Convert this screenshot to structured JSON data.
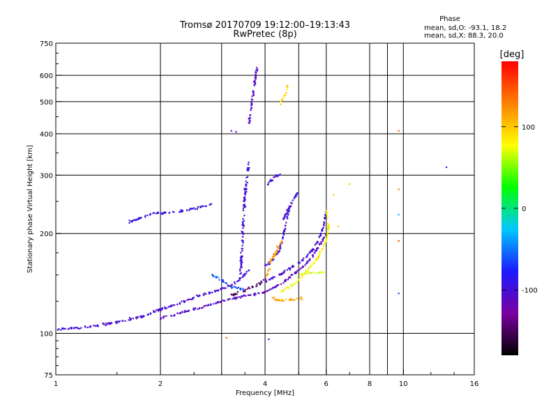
{
  "chart_data": {
    "type": "scatter",
    "title": "Tromsø 20170709 19:12:00–19:13:43",
    "subtitle": "RwPretec (8p)",
    "xlabel": "Frequency [MHz]",
    "ylabel": "Stationary phase Virtual Height [km]",
    "x_scale": "log",
    "y_scale": "log",
    "xlim": [
      1,
      16
    ],
    "ylim": [
      75,
      750
    ],
    "x_ticks": [
      1,
      2,
      4,
      6,
      8,
      10,
      16
    ],
    "x_tick_labels": [
      "1",
      "2",
      "4",
      "6",
      "8",
      "10",
      "16"
    ],
    "x_grid": [
      1,
      2,
      3,
      4,
      5,
      6,
      8,
      9,
      10,
      16
    ],
    "y_ticks": [
      75,
      100,
      200,
      300,
      400,
      500,
      600,
      750
    ],
    "y_tick_labels": [
      "75",
      "100",
      "200",
      "300",
      "400",
      "500",
      "600",
      "750"
    ],
    "y_grid": [
      100,
      200,
      300,
      400,
      500,
      600
    ],
    "grid": true,
    "stats": {
      "heading": "Phase",
      "line_o": "mean, sd,O: -93.1, 18.2",
      "line_x": "mean, sd,X:  88.3, 20.0"
    },
    "colorbar": {
      "label": "[deg]",
      "range": [
        -180,
        180
      ],
      "ticks": [
        -100,
        0,
        100
      ],
      "tick_labels": [
        "-100",
        "0",
        "100"
      ],
      "colormap": [
        "#000000",
        "#7a00a0",
        "#1a1aff",
        "#00c8ff",
        "#00ff00",
        "#ffff00",
        "#ff8000",
        "#ff0000"
      ]
    },
    "traces": [
      {
        "phase": -100,
        "spread": 0.04,
        "points": [
          [
            1.0,
            103
          ],
          [
            1.2,
            104
          ],
          [
            1.5,
            108
          ],
          [
            1.8,
            113
          ],
          [
            2.0,
            118
          ],
          [
            2.3,
            124
          ],
          [
            2.6,
            130
          ],
          [
            3.0,
            136
          ],
          [
            3.3,
            142
          ],
          [
            3.6,
            155
          ]
        ]
      },
      {
        "phase": -110,
        "spread": 0.04,
        "points": [
          [
            2.0,
            111
          ],
          [
            2.5,
            118
          ],
          [
            3.0,
            125
          ],
          [
            3.5,
            130
          ],
          [
            4.0,
            133
          ],
          [
            4.4,
            140
          ],
          [
            4.8,
            150
          ],
          [
            5.2,
            160
          ],
          [
            5.5,
            172
          ],
          [
            5.8,
            188
          ],
          [
            6.0,
            200
          ]
        ]
      },
      {
        "phase": -100,
        "spread": 0.04,
        "points": [
          [
            4.0,
            143
          ],
          [
            4.5,
            152
          ],
          [
            5.0,
            163
          ],
          [
            5.4,
            175
          ],
          [
            5.7,
            190
          ],
          [
            5.9,
            210
          ],
          [
            6.0,
            232
          ]
        ]
      },
      {
        "phase": 80,
        "spread": 0.04,
        "points": [
          [
            4.4,
            133
          ],
          [
            4.9,
            142
          ],
          [
            5.3,
            155
          ],
          [
            5.7,
            170
          ],
          [
            6.0,
            190
          ],
          [
            6.1,
            210
          ],
          [
            6.0,
            235
          ]
        ]
      },
      {
        "phase": -100,
        "spread": 0.06,
        "points": [
          [
            3.4,
            150
          ],
          [
            3.45,
            200
          ],
          [
            3.5,
            260
          ],
          [
            3.55,
            300
          ],
          [
            3.6,
            330
          ]
        ]
      },
      {
        "phase": -105,
        "spread": 0.05,
        "points": [
          [
            3.6,
            430
          ],
          [
            3.65,
            480
          ],
          [
            3.7,
            530
          ],
          [
            3.75,
            580
          ],
          [
            3.8,
            640
          ]
        ]
      },
      {
        "phase": 95,
        "spread": 0.04,
        "points": [
          [
            4.4,
            490
          ],
          [
            4.5,
            510
          ],
          [
            4.6,
            530
          ],
          [
            4.65,
            560
          ]
        ]
      },
      {
        "phase": -95,
        "spread": 0.04,
        "points": [
          [
            1.6,
            215
          ],
          [
            1.9,
            230
          ],
          [
            2.2,
            232
          ],
          [
            2.6,
            240
          ],
          [
            2.8,
            245
          ]
        ]
      },
      {
        "phase": -100,
        "spread": 0.05,
        "points": [
          [
            4.05,
            280
          ],
          [
            4.25,
            295
          ],
          [
            4.45,
            305
          ]
        ]
      },
      {
        "phase": -100,
        "spread": 0.05,
        "points": [
          [
            4.5,
            220
          ],
          [
            4.7,
            240
          ],
          [
            4.9,
            260
          ],
          [
            5.0,
            268
          ]
        ]
      },
      {
        "phase": -100,
        "spread": 0.04,
        "points": [
          [
            4.0,
            160
          ],
          [
            4.2,
            165
          ],
          [
            4.4,
            178
          ],
          [
            4.5,
            195
          ],
          [
            4.6,
            215
          ],
          [
            4.7,
            240
          ]
        ]
      },
      {
        "phase": 120,
        "spread": 0.06,
        "points": [
          [
            4.05,
            150
          ],
          [
            4.15,
            165
          ],
          [
            4.3,
            175
          ],
          [
            4.4,
            185
          ],
          [
            4.5,
            190
          ]
        ]
      },
      {
        "phase": 115,
        "spread": 0.05,
        "points": [
          [
            4.2,
            128
          ],
          [
            4.4,
            126
          ],
          [
            4.7,
            126
          ],
          [
            5.1,
            128
          ]
        ]
      },
      {
        "phase": 70,
        "spread": 0.03,
        "points": [
          [
            5.0,
            150
          ],
          [
            5.3,
            152
          ],
          [
            5.6,
            152
          ],
          [
            5.9,
            153
          ]
        ]
      },
      {
        "phase": -60,
        "spread": 0.05,
        "points": [
          [
            2.8,
            150
          ],
          [
            3.0,
            145
          ],
          [
            3.2,
            138
          ],
          [
            3.5,
            135
          ]
        ]
      },
      {
        "phase": -150,
        "spread": 0.05,
        "points": [
          [
            3.2,
            130
          ],
          [
            3.5,
            135
          ],
          [
            3.8,
            140
          ],
          [
            4.0,
            145
          ]
        ]
      }
    ],
    "extra_points": [
      {
        "x": 9.7,
        "y": 408,
        "phase": 140
      },
      {
        "x": 9.7,
        "y": 272,
        "phase": 130
      },
      {
        "x": 9.7,
        "y": 228,
        "phase": -30
      },
      {
        "x": 9.7,
        "y": 190,
        "phase": 150
      },
      {
        "x": 9.7,
        "y": 132,
        "phase": -60
      },
      {
        "x": 13.3,
        "y": 317,
        "phase": -110
      },
      {
        "x": 7.0,
        "y": 282,
        "phase": 100
      },
      {
        "x": 6.3,
        "y": 262,
        "phase": 100
      },
      {
        "x": 3.1,
        "y": 97,
        "phase": 140
      },
      {
        "x": 4.1,
        "y": 96,
        "phase": -100
      },
      {
        "x": 6.5,
        "y": 210,
        "phase": 100
      },
      {
        "x": 3.2,
        "y": 408,
        "phase": -110
      },
      {
        "x": 3.3,
        "y": 405,
        "phase": -110
      }
    ]
  }
}
